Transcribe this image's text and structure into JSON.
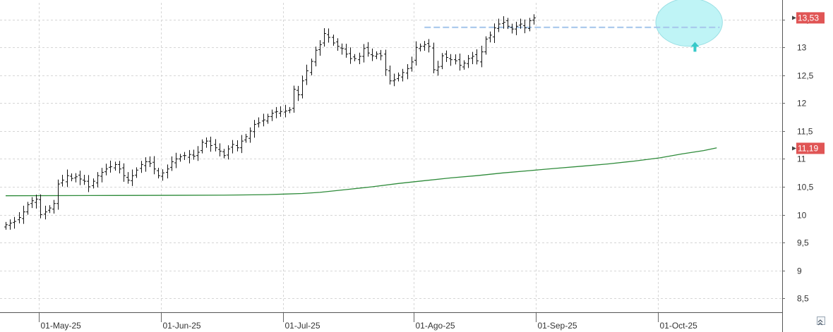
{
  "chart_data": {
    "type": "ohlc",
    "x_tick_labels": [
      "01-May-25",
      "01-Jun-25",
      "01-Jul-25",
      "01-Ago-25",
      "01-Sep-25",
      "01-Oct-25"
    ],
    "y_tick_labels": [
      "13,5",
      "13",
      "12,5",
      "12",
      "11,5",
      "11",
      "10,5",
      "10",
      "9,5",
      "9",
      "8,5"
    ],
    "y_ticks": [
      13.5,
      13,
      12.5,
      12,
      11.5,
      11,
      10.5,
      10,
      9.5,
      9,
      8.5
    ],
    "ylim": [
      8.25,
      13.8
    ],
    "grid": true,
    "price_series": {
      "name": "",
      "color": "#111111",
      "closes": [
        9.82,
        9.85,
        9.88,
        9.95,
        10.05,
        10.18,
        10.25,
        10.28,
        10.0,
        10.05,
        10.12,
        10.2,
        10.55,
        10.62,
        10.7,
        10.65,
        10.68,
        10.64,
        10.6,
        10.5,
        10.6,
        10.7,
        10.76,
        10.82,
        10.86,
        10.9,
        10.82,
        10.7,
        10.62,
        10.7,
        10.8,
        10.9,
        10.95,
        10.92,
        10.82,
        10.7,
        10.75,
        10.82,
        10.95,
        11.0,
        11.04,
        11.06,
        11.08,
        11.05,
        11.12,
        11.3,
        11.32,
        11.24,
        11.2,
        11.14,
        11.06,
        11.18,
        11.26,
        11.2,
        11.32,
        11.4,
        11.5,
        11.62,
        11.65,
        11.7,
        11.76,
        11.82,
        11.85,
        11.85,
        11.86,
        11.88,
        12.25,
        12.15,
        12.4,
        12.58,
        12.75,
        12.95,
        13.05,
        13.25,
        13.18,
        13.08,
        13.02,
        12.98,
        12.88,
        12.8,
        12.8,
        12.84,
        12.98,
        12.9,
        12.85,
        12.88,
        12.85,
        12.6,
        12.4,
        12.42,
        12.5,
        12.55,
        12.62,
        12.74,
        13.0,
        13.02,
        13.05,
        13.02,
        12.6,
        12.65,
        12.85,
        12.82,
        12.78,
        12.76,
        12.68,
        12.72,
        12.8,
        12.84,
        12.76,
        12.92,
        13.15,
        13.22,
        13.35,
        13.42,
        13.45,
        13.38,
        13.33,
        13.38,
        13.42,
        13.35,
        13.48,
        13.53
      ]
    },
    "moving_average": {
      "name": "",
      "color": "#2e8b3a",
      "points": [
        [
          0,
          10.34
        ],
        [
          25,
          10.345
        ],
        [
          50,
          10.35
        ],
        [
          60,
          10.36
        ],
        [
          64,
          10.37
        ],
        [
          68,
          10.38
        ],
        [
          72,
          10.4
        ],
        [
          78,
          10.45
        ],
        [
          84,
          10.5
        ],
        [
          90,
          10.56
        ],
        [
          96,
          10.61
        ],
        [
          102,
          10.66
        ],
        [
          108,
          10.7
        ],
        [
          114,
          10.75
        ],
        [
          120,
          10.79
        ],
        [
          126,
          10.83
        ],
        [
          132,
          10.87
        ],
        [
          138,
          10.91
        ],
        [
          144,
          10.96
        ],
        [
          150,
          11.02
        ],
        [
          155,
          11.09
        ],
        [
          160,
          11.15
        ],
        [
          163,
          11.2
        ]
      ]
    },
    "date_ticks": [
      4,
      32,
      60,
      90,
      118,
      146
    ],
    "resistance_level": 13.36,
    "resistance_color": "#a8c8ec",
    "resistance_start_index": 96,
    "highlight_color": "#bff4f6",
    "highlight_start_index": 150,
    "highlight_end_index": 163,
    "arrow_color": "#37c9c9",
    "arrow_index": 158,
    "last_price_label": "13,53",
    "last_price_value": 13.53,
    "ma_last_label": "11,19",
    "ma_last_value": 11.19,
    "badge_color": "#e05555"
  }
}
